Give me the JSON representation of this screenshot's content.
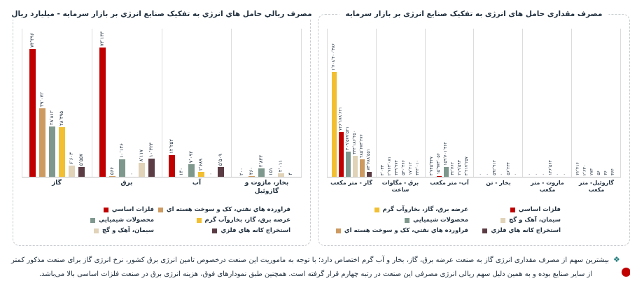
{
  "footnote": {
    "bullet": "❖",
    "text": "بیشترین سهم از مصرف مقداری انرژی گاز به صنعت عرضه برق، گاز، بخار و آب گرم اختصاص دارد؛ با توجه به ماموریت این صنعت درخصوص تامین انرژی برق کشور، نرخ انرژی گاز برای صنعت مذکور کمتر از سایر صنایع بوده و به همین دلیل سهم ریالی انرژی مصرفی این صنعت در رتبه چهارم قرار گرفته است. همچنین طبق نمودارهای فوق، هزینه انرژی برق در صنعت فلزات اساسی بالا می‌باشد."
  },
  "colors": {
    "basic_metals": "#c00000",
    "petroleum_coke_nuclear": "#cd9a62",
    "chemicals": "#7f988e",
    "power_gas_steam_supply": "#f1bf31",
    "cement_lime_gypsum": "#e0d3b8",
    "metal_ore_mining": "#5b3c44",
    "label_text": "#233240",
    "panel_border": "#c6cacd"
  },
  "chart_data": [
    {
      "id": "quantity",
      "type": "bar",
      "title": "مصرف مقداری حامل های انرژی به تفکیک صنایع انرژی بر بازار سرمایه",
      "categories": [
        "گاز - متر مکعب",
        "برق - مگاوات ساعت",
        "آب- متر مکعب",
        "بخار - تن",
        "مازوت - متر مکعب",
        "گازوئیل- متر مکعب"
      ],
      "ymax": 1708400386,
      "grid": "category-separators",
      "legend_position": "bottom",
      "series": [
        {
          "name": "عرضه برق، گاز، بخاروآب گرم",
          "color": "#f1bf31",
          "values": [
            1708400386,
            4033,
            4745327,
            0,
            0,
            22416
          ],
          "labels": [
            "۱٬۷۰۸٬۴۰۰٬۳۸۶",
            "۴٬۰۳۳",
            "۴٬۷۴۵٬۳۲۷",
            "۰",
            "۰",
            "۲۲٬۴۱۶"
          ]
        },
        {
          "name": "فلزات اساسي",
          "color": "#c00000",
          "values": [
            726178621,
            2763081,
            15973056,
            0,
            0,
            2630
          ],
          "labels": [
            "۷۲۶٬۱۷۸٬۶۲۱",
            "۲٬۷۶۳٬۰۸۱",
            "۱۵٬۹۷۳٬۰۵۶",
            "۰",
            "۰",
            "۲٬۶۳۰"
          ]
        },
        {
          "name": "محصولات شيميايي",
          "color": "#7f988e",
          "values": [
            409577521,
            439974,
            159701362,
            592912,
            0,
            273
          ],
          "labels": [
            "۴۰۹٬۵۷۷٬۵۲۱",
            "۴۳۹٬۹۷۴",
            "۱۵۹٬۷۰۱٬۳۶۲",
            "۵۹۲٬۹۱۲",
            "۰",
            "۲۷۳"
          ]
        },
        {
          "name": "سيمان، آهک و گچ",
          "color": "#e0d3b8",
          "values": [
            344186450,
            530366,
            32762,
            0,
            146564,
            56
          ],
          "labels": [
            "۳۴۴٬۱۸۶٬۴۵۰",
            "۵۳۰٬۳۶۶",
            "۳۲٬۷۶۲",
            "۰",
            "۱۴۶٬۵۶۴",
            "۵۶"
          ]
        },
        {
          "name": "فراورده هاي نفتي، کک و سوخت هسته اي",
          "color": "#cd9a62",
          "values": [
            285673276,
            17212,
            219593,
            56234,
            0,
            36
          ],
          "labels": [
            "۲۸۵٬۶۷۳٬۲۷۶",
            "۱۷٬۲۱۲",
            "۲۱۹٬۵۹۳",
            "۵۶٬۲۳۴",
            "۰",
            "۳۶"
          ]
        },
        {
          "name": "استخراج کانه هاي فلزي",
          "color": "#5b3c44",
          "values": [
            83688551,
            344010,
            3217257,
            0,
            0,
            364
          ],
          "labels": [
            "۸۳٬۶۸۸٬۵۵۱",
            "۳۴۴٬۰۱۰",
            "۳٬۲۱۷٬۲۵۷",
            "۰",
            "۰",
            "۳۶۴"
          ]
        }
      ],
      "legend": {
        "right_column": [
          {
            "label": "فلزات اساسي",
            "color": "#c00000"
          },
          {
            "label": "سيمان، آهک و گچ",
            "color": "#e0d3b8"
          },
          {
            "label": "استخراج کانه هاي فلزي",
            "color": "#5b3c44"
          }
        ],
        "left_column": [
          {
            "label": "عرضه برق، گاز، بخاروآب گرم",
            "color": "#f1bf31"
          },
          {
            "label": "محصولات شيميايي",
            "color": "#7f988e"
          },
          {
            "label": "فراورده هاي نفتي، کک و سوخت هسته اي",
            "color": "#cd9a62"
          }
        ]
      }
    },
    {
      "id": "rial",
      "type": "bar",
      "title": "مصرف ريالي حامل هاي انرژي به تفکيک صنايع انرژي بر بازار سرمايه - ميليارد ريال",
      "categories": [
        "گاز",
        "برق",
        "آب",
        "بخار، مازوت و گازوئيل"
      ],
      "ymax": 74133,
      "grid": "category-separators",
      "legend_position": "bottom",
      "series": [
        {
          "name": "فلزات اساسي",
          "color": "#c00000",
          "values": [
            73496,
            74133,
            12252,
            200
          ],
          "labels": [
            "۷۳٬۴۹۶",
            "۷۴٬۱۳۳",
            "۱۲٬۲۵۲",
            "۲۰۰"
          ]
        },
        {
          "name": "فراورده هاي نفتي، کک و سوخت هسته اي",
          "color": "#cd9a62",
          "values": [
            39072,
            566,
            140,
            460
          ],
          "labels": [
            "۳۹٬۰۷۲",
            "۵۶۶",
            "۱۴۰",
            "۴۶۰"
          ]
        },
        {
          "name": "محصولات شيميايي",
          "color": "#7f988e",
          "values": [
            28812,
            10146,
            7092,
            4833
          ],
          "labels": [
            "۲۸٬۸۱۲",
            "۱۰٬۱۴۶",
            "۷٬۰۹۲",
            "۴٬۸۳۳"
          ]
        },
        {
          "name": "عرضه برق، گاز، بخاروآب گرم",
          "color": "#f1bf31",
          "values": [
            28395,
            0,
            2689,
            151
          ],
          "labels": [
            "۲۸٬۳۹۵",
            "۰",
            "۲٬۶۸۹",
            "۱۵۱"
          ]
        },
        {
          "name": "سيمان، آهک و گچ",
          "color": "#e0d3b8",
          "values": [
            6603,
            8117,
            0,
            2011
          ],
          "labels": [
            "۶٬۶۰۳",
            "۸٬۱۱۷",
            "۰",
            "۲٬۰۱۱"
          ]
        },
        {
          "name": "استخراج کانه هاي فلزي",
          "color": "#5b3c44",
          "values": [
            5557,
            10323,
            5509,
            4
          ],
          "labels": [
            "۵٬۵۵۷",
            "۱۰٬۳۲۳",
            "۵٬۵۰۹",
            "۴"
          ]
        }
      ],
      "legend": {
        "right_column": [
          {
            "label": "فراورده هاي نفتي، کک و سوخت هسته اي",
            "color": "#cd9a62"
          },
          {
            "label": "عرضه برق، گاز، بخاروآب گرم",
            "color": "#f1bf31"
          },
          {
            "label": "استخراج کانه هاي فلزي",
            "color": "#5b3c44"
          }
        ],
        "left_column": [
          {
            "label": "فلزات اساسي",
            "color": "#c00000"
          },
          {
            "label": "محصولات شيميايي",
            "color": "#7f988e"
          },
          {
            "label": "سيمان، آهک و گچ",
            "color": "#e0d3b8"
          }
        ]
      }
    }
  ]
}
